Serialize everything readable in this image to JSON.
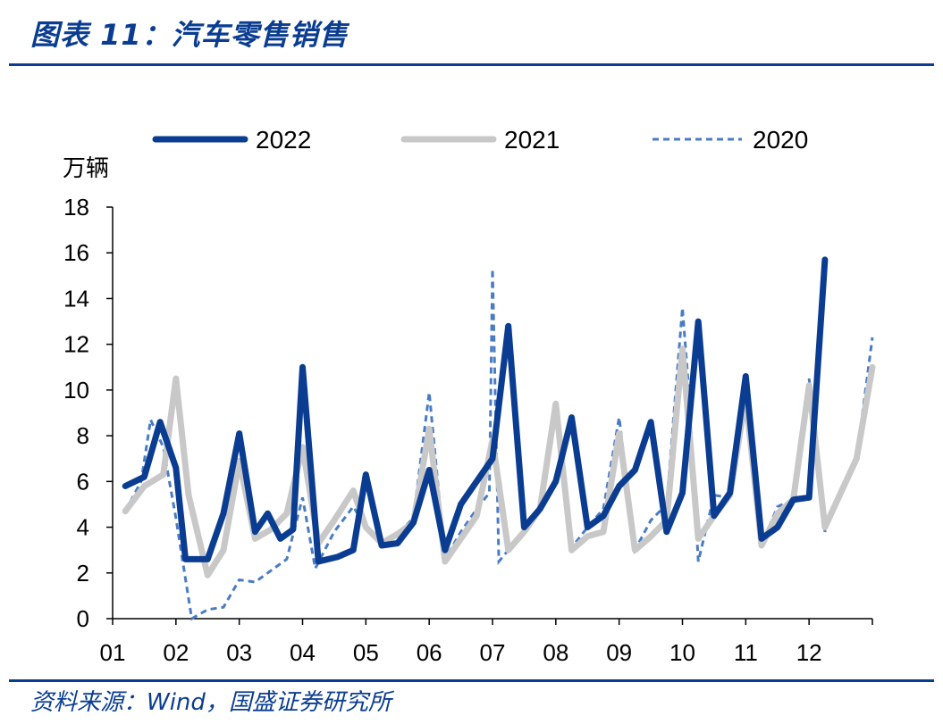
{
  "header": {
    "title": "图表 11：汽车零售销售"
  },
  "footer": {
    "source": "资料来源：Wind，国盛证券研究所"
  },
  "chart_data": {
    "type": "line",
    "unit": "万辆",
    "ylim": [
      0,
      18
    ],
    "yticks": [
      0,
      2,
      4,
      6,
      8,
      10,
      12,
      14,
      16,
      18
    ],
    "month_labels": [
      "01",
      "02",
      "03",
      "04",
      "05",
      "06",
      "07",
      "08",
      "09",
      "10",
      "11",
      "12"
    ],
    "legend_position": "top",
    "series": [
      {
        "name": "2022",
        "color": "#0a3d91",
        "style": "solid-thick",
        "x": [
          1.2,
          1.5,
          1.75,
          2.0,
          2.15,
          2.5,
          2.75,
          3.0,
          3.25,
          3.45,
          3.65,
          3.85,
          4.0,
          4.25,
          4.55,
          4.8,
          5.0,
          5.25,
          5.5,
          5.75,
          6.0,
          6.25,
          6.5,
          6.75,
          7.0,
          7.25,
          7.5,
          7.75,
          8.0,
          8.25,
          8.5,
          8.75,
          9.0,
          9.25,
          9.5,
          9.75,
          10.0,
          10.25,
          10.5,
          10.75,
          11.0,
          11.25,
          11.5,
          11.75,
          12.0,
          12.25
        ],
        "values": [
          5.8,
          6.2,
          8.6,
          6.6,
          2.6,
          2.6,
          4.6,
          8.1,
          3.8,
          4.6,
          3.5,
          3.9,
          11.0,
          2.5,
          2.7,
          3.0,
          6.3,
          3.2,
          3.3,
          4.2,
          6.5,
          3.0,
          5.0,
          6.0,
          7.0,
          12.8,
          4.0,
          4.8,
          6.0,
          8.8,
          4.0,
          4.5,
          5.8,
          6.5,
          8.6,
          3.8,
          5.5,
          13.0,
          4.5,
          5.5,
          10.6,
          3.5,
          4.0,
          5.2,
          5.3,
          15.7
        ]
      },
      {
        "name": "2021",
        "color": "#c8c8c8",
        "style": "solid-thick",
        "x": [
          1.2,
          1.5,
          1.8,
          2.0,
          2.2,
          2.5,
          2.75,
          3.0,
          3.25,
          3.5,
          3.75,
          4.0,
          4.25,
          4.5,
          4.8,
          5.0,
          5.25,
          5.5,
          5.75,
          6.0,
          6.25,
          6.5,
          6.75,
          7.0,
          7.25,
          7.5,
          7.75,
          8.0,
          8.25,
          8.5,
          8.75,
          9.0,
          9.25,
          9.5,
          9.75,
          10.0,
          10.25,
          10.5,
          10.75,
          11.0,
          11.25,
          11.5,
          11.75,
          12.0,
          12.25,
          12.5,
          12.75,
          13.0
        ],
        "values": [
          4.7,
          5.8,
          6.3,
          10.5,
          5.4,
          1.9,
          3.0,
          6.9,
          3.5,
          3.9,
          4.6,
          7.5,
          3.3,
          4.3,
          5.6,
          4.0,
          3.3,
          3.7,
          4.2,
          8.3,
          2.5,
          3.5,
          4.5,
          7.8,
          3.0,
          3.8,
          4.8,
          9.4,
          3.0,
          3.6,
          3.8,
          8.1,
          3.0,
          3.6,
          4.3,
          11.8,
          3.5,
          4.5,
          5.4,
          9.7,
          3.2,
          4.6,
          5.2,
          10.2,
          4.0,
          5.5,
          7.0,
          11.0
        ]
      },
      {
        "name": "2020",
        "color": "#4a7cc4",
        "style": "dashed",
        "x": [
          1.2,
          1.45,
          1.6,
          1.8,
          2.0,
          2.25,
          2.5,
          2.75,
          3.0,
          3.25,
          3.5,
          3.75,
          4.0,
          4.2,
          4.5,
          4.8,
          5.0,
          5.25,
          5.5,
          5.75,
          6.0,
          6.25,
          6.5,
          6.75,
          6.95,
          7.0,
          7.1,
          7.25,
          7.5,
          7.75,
          8.0,
          8.25,
          8.5,
          8.75,
          9.0,
          9.25,
          9.5,
          9.75,
          10.0,
          10.1,
          10.25,
          10.5,
          10.75,
          11.0,
          11.25,
          11.5,
          11.75,
          12.0,
          12.25,
          12.5,
          12.75,
          13.0
        ],
        "values": [
          4.7,
          6.0,
          8.7,
          7.5,
          4.4,
          0.0,
          0.4,
          0.5,
          1.7,
          1.6,
          2.1,
          2.6,
          5.3,
          2.2,
          3.8,
          4.9,
          4.0,
          3.3,
          3.7,
          4.4,
          9.9,
          2.6,
          3.8,
          4.8,
          5.5,
          15.3,
          2.5,
          3.0,
          3.8,
          4.9,
          9.3,
          3.1,
          4.0,
          4.8,
          8.8,
          3.0,
          4.3,
          5.0,
          13.6,
          10.0,
          2.5,
          5.4,
          5.3,
          10.0,
          3.2,
          4.9,
          5.2,
          10.5,
          3.8,
          5.5,
          7.0,
          12.3
        ]
      }
    ]
  }
}
